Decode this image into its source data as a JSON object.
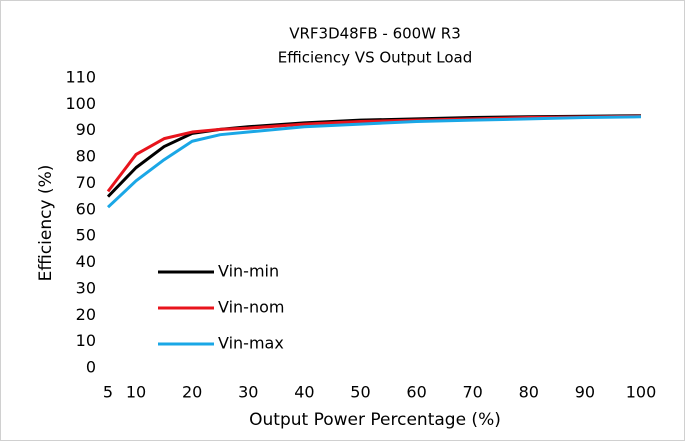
{
  "chart_data": {
    "type": "line",
    "title": "VRF3D48FB - 600W R3",
    "subtitle": "Efficiency VS Output Load",
    "x_label": "Output Power Percentage (%)",
    "y_label": "Efficiency (%)",
    "x": [
      5,
      10,
      15,
      20,
      25,
      30,
      40,
      50,
      60,
      70,
      80,
      90,
      100
    ],
    "series": [
      {
        "name": "Vin-min",
        "color": "#000000",
        "values": [
          65,
          76,
          84,
          89,
          90.5,
          91.5,
          93,
          94,
          94.5,
          95,
          95.3,
          95.5,
          95.7
        ]
      },
      {
        "name": "Vin-nom",
        "color": "#e8141c",
        "values": [
          67,
          81,
          87,
          89.5,
          90.5,
          91,
          92.5,
          93.5,
          94,
          94.5,
          95,
          95.2,
          95.5
        ]
      },
      {
        "name": "Vin-max",
        "color": "#1aa7e6",
        "values": [
          61,
          71,
          79,
          86,
          88.5,
          89.5,
          91.5,
          92.5,
          93.5,
          94,
          94.5,
          95,
          95.3
        ]
      }
    ],
    "xlim": [
      5,
      100
    ],
    "xticks": [
      5,
      10,
      20,
      30,
      40,
      50,
      60,
      70,
      80,
      90,
      100
    ],
    "ylim": [
      0,
      110
    ],
    "yticks": [
      0,
      10,
      20,
      30,
      40,
      50,
      60,
      70,
      80,
      90,
      100,
      110
    ],
    "legend": "lower left"
  }
}
